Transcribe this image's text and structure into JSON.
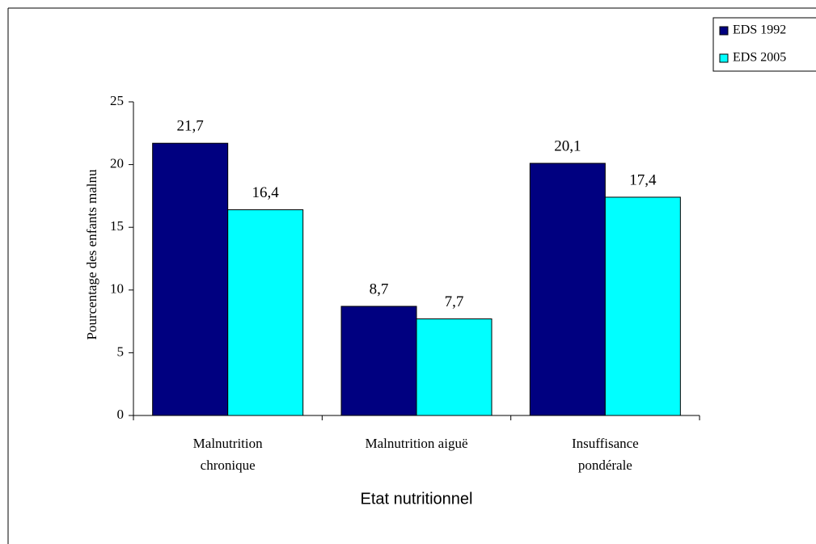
{
  "chart_data": {
    "type": "bar",
    "y_label": "Pourcentage des enfants malnu",
    "x_label": "Etat nutritionnel",
    "categories": [
      "Malnutrition chronique",
      "Malnutrition aiguë",
      "Insuffisance pondérale"
    ],
    "series": [
      {
        "name": "EDS 1992",
        "color": "#000080",
        "values": [
          21.7,
          8.7,
          20.1
        ],
        "value_labels": [
          "21,7",
          "8,7",
          "20,1"
        ]
      },
      {
        "name": "EDS 2005",
        "color": "#00ffff",
        "values": [
          16.4,
          7.7,
          17.4
        ],
        "value_labels": [
          "16,4",
          "7,7",
          "17,4"
        ]
      }
    ],
    "ylim": [
      0,
      25
    ],
    "yticks": [
      0,
      5,
      10,
      15,
      20,
      25
    ],
    "grid": false,
    "legend": "top-right"
  }
}
